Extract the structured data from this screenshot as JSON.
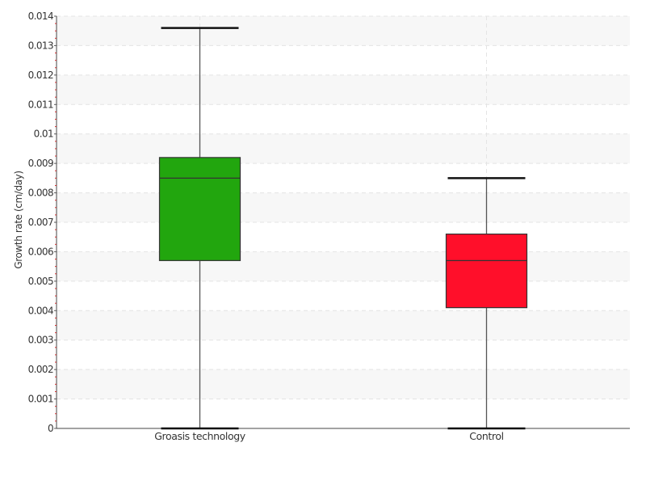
{
  "chart_data": {
    "type": "box",
    "title": "",
    "xlabel": "",
    "ylabel": "Growth rate (cm/day)",
    "ylim": [
      0,
      0.014
    ],
    "y_ticks": [
      "0",
      "0.001",
      "0.002",
      "0.003",
      "0.004",
      "0.005",
      "0.006",
      "0.007",
      "0.008",
      "0.009",
      "0.01",
      "0.011",
      "0.012",
      "0.013",
      "0.014"
    ],
    "grid": true,
    "categories": [
      "Groasis technology",
      "Control"
    ],
    "boxes": [
      {
        "category": "Groasis technology",
        "min": 0,
        "q1": 0.0057,
        "median": 0.0085,
        "q3": 0.0092,
        "max": 0.0136,
        "color": "#22a60e"
      },
      {
        "category": "Control",
        "min": 0,
        "q1": 0.0041,
        "median": 0.0057,
        "q3": 0.0066,
        "max": 0.0085,
        "color": "#ff0f2a"
      }
    ]
  }
}
